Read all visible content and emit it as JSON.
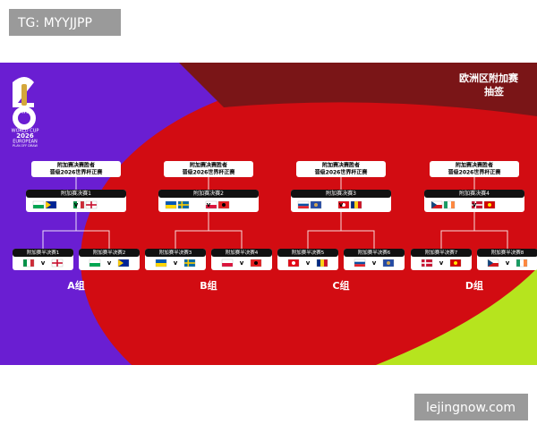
{
  "watermark": "TG: MYYJJPP",
  "source": "lejingnow.com",
  "header": {
    "title": "欧洲区附加赛",
    "subtitle": "抽签"
  },
  "logo": {
    "brand": "FIFA",
    "lines": [
      "WORLD CUP",
      "2026",
      "EUROPEAN",
      "PLAY-OFF DRAW"
    ]
  },
  "versus": "v",
  "groups": [
    {
      "winner": [
        "附加赛决赛胜者",
        "晋级2026世界杯正赛"
      ],
      "final": "附加赛决赛1",
      "semis": [
        "附加赛半决赛1",
        "附加赛半决赛2"
      ],
      "label": "A组"
    },
    {
      "winner": [
        "附加赛决赛胜者",
        "晋级2026世界杯正赛"
      ],
      "final": "附加赛决赛2",
      "semis": [
        "附加赛半决赛3",
        "附加赛半决赛4"
      ],
      "label": "B组"
    },
    {
      "winner": [
        "附加赛决赛胜者",
        "晋级2026世界杯正赛"
      ],
      "final": "附加赛决赛3",
      "semis": [
        "附加赛半决赛5",
        "附加赛半决赛6"
      ],
      "label": "C组"
    },
    {
      "winner": [
        "附加赛决赛胜者",
        "晋级2026世界杯正赛"
      ],
      "final": "附加赛决赛4",
      "semis": [
        "附加赛半决赛7",
        "附加赛半决赛8"
      ],
      "label": "D组"
    }
  ]
}
